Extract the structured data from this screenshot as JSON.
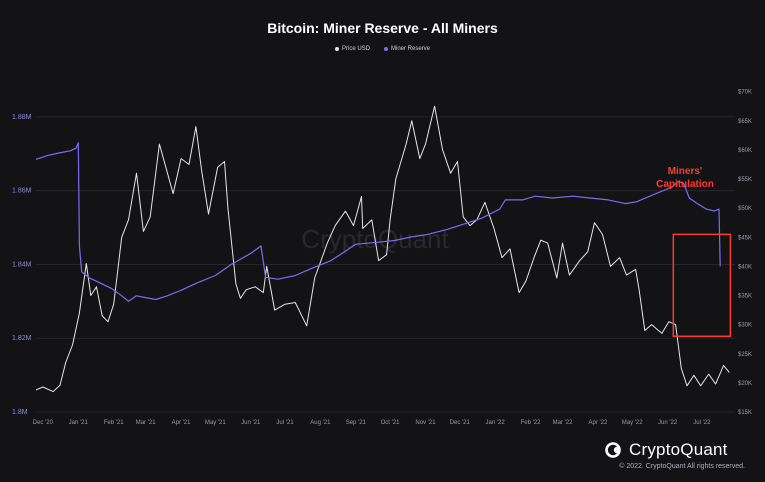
{
  "chart_data": {
    "type": "line",
    "title": "Bitcoin: Miner Reserve - All Miners",
    "x_ticks": [
      "Dec '20",
      "Jan '21",
      "Feb '21",
      "Mar '21",
      "Apr '21",
      "May '21",
      "Jun '21",
      "Jul '21",
      "Aug '21",
      "Sep '21",
      "Oct '21",
      "Nov '21",
      "Dec '21",
      "Jan '22",
      "Feb '22",
      "Mar '22",
      "Apr '22",
      "May '22",
      "Jun '22",
      "Jul '22"
    ],
    "left_axis": {
      "ticks": [
        "1.8M",
        "1.82M",
        "1.84M",
        "1.86M",
        "1.88M"
      ],
      "range": [
        1800000,
        1890000
      ]
    },
    "right_axis": {
      "ticks": [
        "$15K",
        "$20K",
        "$25K",
        "$30K",
        "$35K",
        "$40K",
        "$45K",
        "$50K",
        "$55K",
        "$60K",
        "$65K",
        "$70K"
      ],
      "range": [
        15000,
        72000
      ]
    },
    "legend_position": "top-center",
    "grid": true,
    "watermark": "CryptoQuant",
    "series": [
      {
        "name": "Price USD",
        "axis": "right",
        "color": "#e6e6e6",
        "points": [
          [
            "2020-11-25",
            18800
          ],
          [
            "2020-12-01",
            19300
          ],
          [
            "2020-12-10",
            18500
          ],
          [
            "2020-12-16",
            19600
          ],
          [
            "2020-12-21",
            23500
          ],
          [
            "2020-12-27",
            26500
          ],
          [
            "2021-01-02",
            32000
          ],
          [
            "2021-01-08",
            40500
          ],
          [
            "2021-01-12",
            35000
          ],
          [
            "2021-01-17",
            36500
          ],
          [
            "2021-01-22",
            31500
          ],
          [
            "2021-01-27",
            30500
          ],
          [
            "2021-02-01",
            33500
          ],
          [
            "2021-02-08",
            45000
          ],
          [
            "2021-02-14",
            48000
          ],
          [
            "2021-02-21",
            56000
          ],
          [
            "2021-02-27",
            46000
          ],
          [
            "2021-03-05",
            48500
          ],
          [
            "2021-03-13",
            61000
          ],
          [
            "2021-03-18",
            57500
          ],
          [
            "2021-03-25",
            52500
          ],
          [
            "2021-04-01",
            58500
          ],
          [
            "2021-04-08",
            57500
          ],
          [
            "2021-04-14",
            64000
          ],
          [
            "2021-04-19",
            56500
          ],
          [
            "2021-04-25",
            49000
          ],
          [
            "2021-05-03",
            57000
          ],
          [
            "2021-05-09",
            58000
          ],
          [
            "2021-05-12",
            50000
          ],
          [
            "2021-05-19",
            37000
          ],
          [
            "2021-05-23",
            34500
          ],
          [
            "2021-05-28",
            36000
          ],
          [
            "2021-06-05",
            36500
          ],
          [
            "2021-06-12",
            35500
          ],
          [
            "2021-06-15",
            40000
          ],
          [
            "2021-06-22",
            32500
          ],
          [
            "2021-07-01",
            33500
          ],
          [
            "2021-07-10",
            33800
          ],
          [
            "2021-07-20",
            29800
          ],
          [
            "2021-07-27",
            38000
          ],
          [
            "2021-08-07",
            44000
          ],
          [
            "2021-08-14",
            47000
          ],
          [
            "2021-08-23",
            49500
          ],
          [
            "2021-08-30",
            47000
          ],
          [
            "2021-09-06",
            52000
          ],
          [
            "2021-09-07",
            46500
          ],
          [
            "2021-09-15",
            48000
          ],
          [
            "2021-09-21",
            41000
          ],
          [
            "2021-09-28",
            42000
          ],
          [
            "2021-10-01",
            48000
          ],
          [
            "2021-10-06",
            55000
          ],
          [
            "2021-10-15",
            61000
          ],
          [
            "2021-10-20",
            65000
          ],
          [
            "2021-10-27",
            58500
          ],
          [
            "2021-11-01",
            61000
          ],
          [
            "2021-11-09",
            67500
          ],
          [
            "2021-11-16",
            60000
          ],
          [
            "2021-11-23",
            56000
          ],
          [
            "2021-11-29",
            58000
          ],
          [
            "2021-12-04",
            48500
          ],
          [
            "2021-12-10",
            47000
          ],
          [
            "2021-12-16",
            48000
          ],
          [
            "2021-12-23",
            51000
          ],
          [
            "2021-12-31",
            46500
          ],
          [
            "2022-01-07",
            41500
          ],
          [
            "2022-01-14",
            43000
          ],
          [
            "2022-01-22",
            35500
          ],
          [
            "2022-01-28",
            37500
          ],
          [
            "2022-02-04",
            41500
          ],
          [
            "2022-02-10",
            44500
          ],
          [
            "2022-02-16",
            44000
          ],
          [
            "2022-02-24",
            38000
          ],
          [
            "2022-03-01",
            44000
          ],
          [
            "2022-03-07",
            38500
          ],
          [
            "2022-03-16",
            41000
          ],
          [
            "2022-03-23",
            42500
          ],
          [
            "2022-03-29",
            47500
          ],
          [
            "2022-04-05",
            45500
          ],
          [
            "2022-04-12",
            40000
          ],
          [
            "2022-04-20",
            41500
          ],
          [
            "2022-04-26",
            38500
          ],
          [
            "2022-05-04",
            39500
          ],
          [
            "2022-05-07",
            36000
          ],
          [
            "2022-05-12",
            29000
          ],
          [
            "2022-05-18",
            30000
          ],
          [
            "2022-05-27",
            28500
          ],
          [
            "2022-06-02",
            30500
          ],
          [
            "2022-06-08",
            30000
          ],
          [
            "2022-06-13",
            22500
          ],
          [
            "2022-06-18",
            19500
          ],
          [
            "2022-06-24",
            21300
          ],
          [
            "2022-06-30",
            19500
          ],
          [
            "2022-07-07",
            21500
          ],
          [
            "2022-07-13",
            19800
          ],
          [
            "2022-07-20",
            23000
          ],
          [
            "2022-07-25",
            21800
          ]
        ]
      },
      {
        "name": "Miner Reserve",
        "axis": "left",
        "color": "#7b6cf2",
        "points": [
          [
            "2020-11-25",
            1868500
          ],
          [
            "2020-12-05",
            1869500
          ],
          [
            "2020-12-15",
            1870200
          ],
          [
            "2020-12-25",
            1870800
          ],
          [
            "2020-12-30",
            1871500
          ],
          [
            "2021-01-01",
            1873000
          ],
          [
            "2021-01-02",
            1845000
          ],
          [
            "2021-01-04",
            1838000
          ],
          [
            "2021-01-10",
            1836500
          ],
          [
            "2021-01-20",
            1835000
          ],
          [
            "2021-01-30",
            1833500
          ],
          [
            "2021-02-08",
            1831500
          ],
          [
            "2021-02-14",
            1830000
          ],
          [
            "2021-02-21",
            1831500
          ],
          [
            "2021-03-01",
            1831000
          ],
          [
            "2021-03-10",
            1830500
          ],
          [
            "2021-03-20",
            1831500
          ],
          [
            "2021-04-01",
            1833000
          ],
          [
            "2021-04-15",
            1835000
          ],
          [
            "2021-05-01",
            1837000
          ],
          [
            "2021-05-15",
            1840000
          ],
          [
            "2021-06-01",
            1843000
          ],
          [
            "2021-06-10",
            1845000
          ],
          [
            "2021-06-14",
            1836500
          ],
          [
            "2021-06-25",
            1836000
          ],
          [
            "2021-07-10",
            1837000
          ],
          [
            "2021-07-25",
            1839000
          ],
          [
            "2021-08-10",
            1841000
          ],
          [
            "2021-08-20",
            1843000
          ],
          [
            "2021-09-01",
            1845500
          ],
          [
            "2021-09-20",
            1846000
          ],
          [
            "2021-10-05",
            1846500
          ],
          [
            "2021-10-20",
            1847500
          ],
          [
            "2021-11-01",
            1848000
          ],
          [
            "2021-11-20",
            1849500
          ],
          [
            "2021-12-05",
            1851000
          ],
          [
            "2021-12-20",
            1852500
          ],
          [
            "2022-01-05",
            1855000
          ],
          [
            "2022-01-10",
            1857500
          ],
          [
            "2022-01-25",
            1857500
          ],
          [
            "2022-02-05",
            1858500
          ],
          [
            "2022-02-20",
            1858000
          ],
          [
            "2022-03-10",
            1858500
          ],
          [
            "2022-03-25",
            1858000
          ],
          [
            "2022-04-10",
            1857500
          ],
          [
            "2022-04-25",
            1856500
          ],
          [
            "2022-05-05",
            1857000
          ],
          [
            "2022-05-20",
            1859000
          ],
          [
            "2022-06-05",
            1861000
          ],
          [
            "2022-06-10",
            1862500
          ],
          [
            "2022-06-15",
            1862000
          ],
          [
            "2022-06-20",
            1858000
          ],
          [
            "2022-06-27",
            1856500
          ],
          [
            "2022-07-05",
            1855000
          ],
          [
            "2022-07-12",
            1854500
          ],
          [
            "2022-07-16",
            1855000
          ],
          [
            "2022-07-17",
            1839500
          ]
        ]
      }
    ],
    "annotation": {
      "line1": "Miners'",
      "line2": "Capitulation",
      "color": "#ff3b30",
      "x_range": [
        "2022-06-06",
        "2022-07-26"
      ],
      "y_range": [
        28000,
        45500
      ],
      "y_axis": "right"
    }
  },
  "brand": {
    "name": "CryptoQuant",
    "copyright": "© 2022. CryptoQuant All rights reserved."
  },
  "colors": {
    "background": "#131316",
    "price": "#e6e6e6",
    "reserve": "#7b6cf2",
    "grid": "#2a2a30",
    "annotation": "#ff3b30"
  }
}
